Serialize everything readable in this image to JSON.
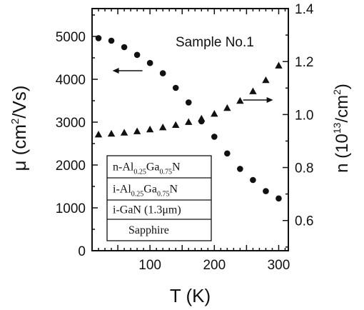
{
  "chart_data": {
    "type": "scatter",
    "annotation": "Sample No.1",
    "xlabel": "T (K)",
    "x_ticks": [
      "100",
      "200",
      "300"
    ],
    "xlim": [
      10,
      315
    ],
    "y_left": {
      "label": "μ (cm²/Vs)",
      "label_parts": {
        "pre": "μ (cm",
        "sup": "2",
        "post": "/Vs)"
      },
      "lim": [
        0,
        5650
      ],
      "ticks": [
        "0",
        "1000",
        "2000",
        "3000",
        "4000",
        "5000"
      ]
    },
    "y_right": {
      "label": "n (10¹³/cm²)",
      "label_parts": {
        "pre": "n (10",
        "sup1": "13",
        "mid": "/cm",
        "sup2": "2",
        "post": ")"
      },
      "lim": [
        0.486,
        1.4
      ],
      "ticks": [
        "0.6",
        "0.8",
        "1.0",
        "1.2",
        "1.4"
      ]
    },
    "series": [
      {
        "marker": "circle",
        "axis": "left",
        "x": [
          20,
          40,
          60,
          80,
          100,
          120,
          140,
          160,
          180,
          200,
          220,
          240,
          260,
          280,
          300
        ],
        "y": [
          4960,
          4900,
          4750,
          4570,
          4380,
          4140,
          3800,
          3460,
          3020,
          2660,
          2270,
          1910,
          1650,
          1390,
          1220
        ]
      },
      {
        "marker": "triangle",
        "axis": "right",
        "x": [
          20,
          40,
          60,
          80,
          100,
          120,
          140,
          160,
          180,
          200,
          220,
          240,
          260,
          280,
          300
        ],
        "y": [
          0.925,
          0.928,
          0.932,
          0.937,
          0.944,
          0.952,
          0.961,
          0.972,
          0.985,
          1.003,
          1.025,
          1.052,
          1.088,
          1.13,
          1.185
        ]
      }
    ],
    "arrows": [
      {
        "target": "left",
        "at": {
          "x": 65,
          "y": 4200
        },
        "direction": "left"
      },
      {
        "target": "right",
        "at": {
          "x": 268,
          "y": 1.055
        },
        "direction": "right"
      }
    ],
    "layer_stack": [
      {
        "parts": [
          {
            "t": "n-Al"
          },
          {
            "t": "0.25",
            "sub": true
          },
          {
            "t": "Ga"
          },
          {
            "t": "0.75",
            "sub": true
          },
          {
            "t": "N"
          }
        ]
      },
      {
        "parts": [
          {
            "t": "i-Al"
          },
          {
            "t": "0.25",
            "sub": true
          },
          {
            "t": "Ga"
          },
          {
            "t": "0.75",
            "sub": true
          },
          {
            "t": "N"
          }
        ]
      },
      {
        "parts": [
          {
            "t": "i-GaN (1.3μm)"
          }
        ]
      },
      {
        "parts": [
          {
            "t": "Sapphire"
          }
        ]
      }
    ],
    "colors": {
      "ink": "#111111",
      "background": "#ffffff"
    }
  }
}
